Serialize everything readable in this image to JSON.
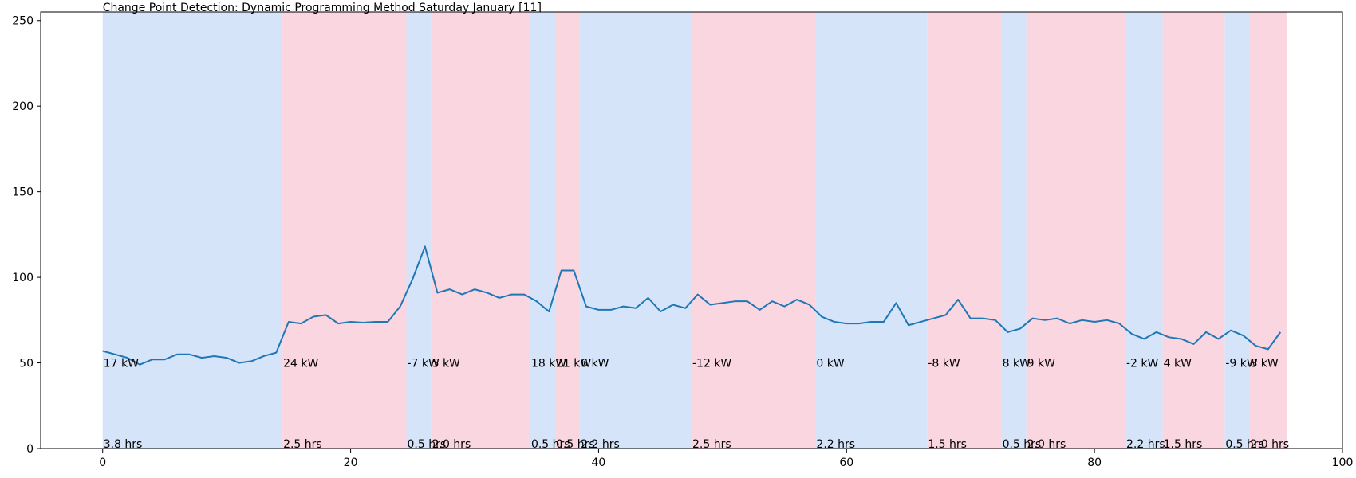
{
  "chart_data": {
    "type": "line",
    "title": "Change Point Detection: Dynamic Programming Method Saturday January [11]",
    "xlabel": "",
    "ylabel": "",
    "xlim": [
      -5,
      100
    ],
    "ylim": [
      0,
      255
    ],
    "xticks": [
      0,
      20,
      40,
      60,
      80,
      100
    ],
    "yticks": [
      0,
      50,
      100,
      150,
      200,
      250
    ],
    "grid": false,
    "line_color": "#1f77b4",
    "band_colors": [
      "#d6e4fa",
      "#fad6e1"
    ],
    "segments": [
      {
        "start": 0,
        "end": 14.5,
        "power_label": "17 kW",
        "duration_label": "3.8 hrs"
      },
      {
        "start": 14.5,
        "end": 24.5,
        "power_label": "24 kW",
        "duration_label": "2.5 hrs"
      },
      {
        "start": 24.5,
        "end": 26.5,
        "power_label": "-7 kW",
        "duration_label": "0.5 hrs"
      },
      {
        "start": 26.5,
        "end": 34.5,
        "power_label": "5 kW",
        "duration_label": "2.0 hrs"
      },
      {
        "start": 34.5,
        "end": 36.5,
        "power_label": "18 kW",
        "duration_label": "0.5 hrs"
      },
      {
        "start": 36.5,
        "end": 38.5,
        "power_label": "21 kW",
        "duration_label": "0.5 hrs"
      },
      {
        "start": 38.5,
        "end": 47.5,
        "power_label": "6 kW",
        "duration_label": "2.2 hrs"
      },
      {
        "start": 47.5,
        "end": 57.5,
        "power_label": "-12 kW",
        "duration_label": "2.5 hrs"
      },
      {
        "start": 57.5,
        "end": 66.5,
        "power_label": "0 kW",
        "duration_label": "2.2 hrs"
      },
      {
        "start": 66.5,
        "end": 72.5,
        "power_label": "-8 kW",
        "duration_label": "1.5 hrs"
      },
      {
        "start": 72.5,
        "end": 74.5,
        "power_label": "8 kW",
        "duration_label": "0.5 hrs"
      },
      {
        "start": 74.5,
        "end": 82.5,
        "power_label": "9 kW",
        "duration_label": "2.0 hrs"
      },
      {
        "start": 82.5,
        "end": 85.5,
        "power_label": "-2 kW",
        "duration_label": "2.2 hrs"
      },
      {
        "start": 85.5,
        "end": 90.5,
        "power_label": "4 kW",
        "duration_label": "1.5 hrs"
      },
      {
        "start": 90.5,
        "end": 92.5,
        "power_label": "-9 kW",
        "duration_label": "0.5 hrs"
      },
      {
        "start": 92.5,
        "end": 95.5,
        "power_label": "8 kW",
        "duration_label": "2.0 hrs"
      }
    ],
    "series": [
      {
        "x": [
          0,
          1,
          2,
          3,
          4,
          5,
          6,
          7,
          8,
          9,
          10,
          11,
          12,
          13,
          14,
          15,
          16,
          17,
          18,
          19,
          20,
          21,
          22,
          23,
          24,
          25,
          26,
          27,
          28,
          29,
          30,
          31,
          32,
          33,
          34,
          35,
          36,
          37,
          38,
          39,
          40,
          41,
          42,
          43,
          44,
          45,
          46,
          47,
          48,
          49,
          50,
          51,
          52,
          53,
          54,
          55,
          56,
          57,
          58,
          59,
          60,
          61,
          62,
          63,
          64,
          65,
          66,
          67,
          68,
          69,
          70,
          71,
          72,
          73,
          74,
          75,
          76,
          77,
          78,
          79,
          80,
          81,
          82,
          83,
          84,
          85,
          86,
          87,
          88,
          89,
          90,
          91,
          92,
          93,
          94,
          95
        ],
        "values": [
          57,
          55,
          53,
          49,
          52,
          52,
          55,
          55,
          53,
          54,
          53,
          50,
          51,
          54,
          56,
          74,
          73,
          77,
          78,
          73,
          74,
          73.5,
          74,
          74,
          83,
          99,
          118,
          91,
          93,
          90,
          93,
          91,
          88,
          90,
          90,
          86,
          80,
          104,
          104,
          83,
          81,
          81,
          83,
          82,
          88,
          80,
          84,
          82,
          90,
          84,
          85,
          86,
          86,
          81,
          86,
          83,
          87,
          84,
          77,
          74,
          73,
          73,
          74,
          74,
          85,
          72,
          74,
          76,
          78,
          87,
          76,
          76,
          75,
          68,
          70,
          76,
          75,
          76,
          73,
          75,
          74,
          75,
          73,
          67,
          64,
          68,
          65,
          64,
          61,
          68,
          64,
          69,
          66,
          60,
          58,
          68
        ]
      }
    ]
  }
}
